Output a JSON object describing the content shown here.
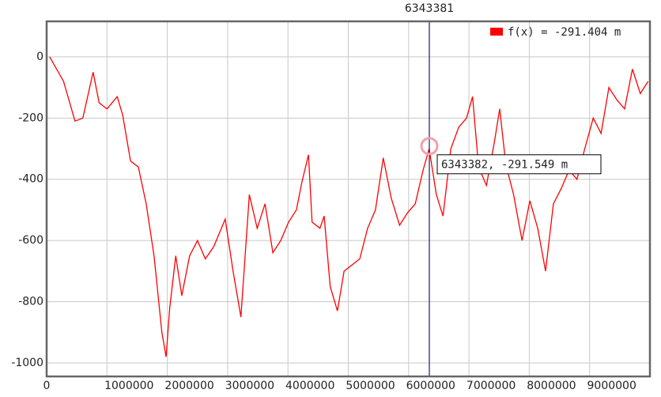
{
  "chart_data": {
    "type": "line",
    "x": [
      50000,
      280000,
      470000,
      600000,
      770000,
      870000,
      1000000,
      1170000,
      1260000,
      1390000,
      1520000,
      1650000,
      1780000,
      1910000,
      1980000,
      2040000,
      2140000,
      2240000,
      2370000,
      2500000,
      2630000,
      2770000,
      2960000,
      3090000,
      3220000,
      3360000,
      3490000,
      3620000,
      3750000,
      3880000,
      4010000,
      4140000,
      4230000,
      4340000,
      4400000,
      4530000,
      4600000,
      4700000,
      4820000,
      4930000,
      5060000,
      5190000,
      5320000,
      5450000,
      5580000,
      5710000,
      5850000,
      5980000,
      6110000,
      6240000,
      6340000,
      6460000,
      6570000,
      6700000,
      6830000,
      6960000,
      7060000,
      7160000,
      7290000,
      7420000,
      7510000,
      7610000,
      7740000,
      7880000,
      8010000,
      8140000,
      8270000,
      8400000,
      8530000,
      8660000,
      8790000,
      8920000,
      9060000,
      9190000,
      9320000,
      9450000,
      9580000,
      9710000,
      9840000,
      9970000
    ],
    "series": [
      {
        "name": "f(x) = -291.404 m",
        "color": "#ff0000",
        "values": [
          0,
          -80,
          -210,
          -200,
          -50,
          -150,
          -170,
          -130,
          -190,
          -340,
          -360,
          -480,
          -650,
          -900,
          -980,
          -820,
          -650,
          -780,
          -650,
          -600,
          -660,
          -620,
          -530,
          -700,
          -850,
          -450,
          -560,
          -480,
          -640,
          -600,
          -540,
          -500,
          -410,
          -320,
          -540,
          -560,
          -520,
          -750,
          -830,
          -700,
          -680,
          -660,
          -560,
          -500,
          -330,
          -460,
          -550,
          -510,
          -480,
          -370,
          -300,
          -450,
          -520,
          -300,
          -230,
          -200,
          -130,
          -360,
          -420,
          -280,
          -170,
          -350,
          -450,
          -600,
          -470,
          -560,
          -700,
          -480,
          -430,
          -370,
          -400,
          -300,
          -200,
          -250,
          -100,
          -140,
          -170,
          -40,
          -120,
          -80
        ]
      }
    ],
    "xlim": [
      0,
      10000000
    ],
    "xticks": [
      0,
      1000000,
      2000000,
      3000000,
      4000000,
      5000000,
      6000000,
      7000000,
      8000000,
      9000000
    ],
    "ylim": [
      -1044,
      116
    ],
    "yticks": [
      0,
      -200,
      -400,
      -600,
      -800,
      -1000
    ],
    "grid": true,
    "cursor_x": 6343381,
    "tooltip": {
      "x": 6343382,
      "y": -291.549,
      "label": "6343382, -291.549 m"
    },
    "legend": "top-right"
  }
}
